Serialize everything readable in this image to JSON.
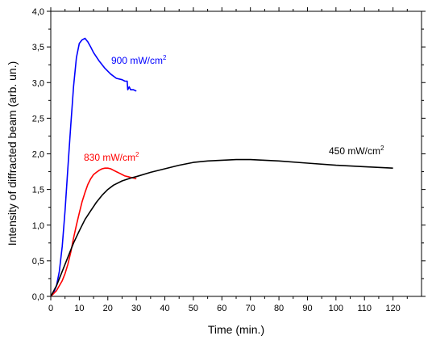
{
  "chart_data": {
    "type": "line",
    "title": "",
    "xlabel": "Time (min.)",
    "ylabel": "Intensity of diffracted beam (arb. un.)",
    "xlim": [
      0,
      130
    ],
    "ylim": [
      0,
      4.0
    ],
    "x_ticks": [
      "0",
      "10",
      "20",
      "30",
      "40",
      "50",
      "60",
      "70",
      "80",
      "90",
      "100",
      "110",
      "120"
    ],
    "y_ticks": [
      "0,0",
      "0,5",
      "1,0",
      "1,5",
      "2,0",
      "2,5",
      "3,0",
      "3,5",
      "4,0"
    ],
    "grid": false,
    "legend": "none",
    "series": [
      {
        "name": "900 mW/cm²",
        "label_base": "900 mW/cm",
        "label_sup": "2",
        "color": "#0000ff",
        "x": [
          0,
          1,
          2,
          3,
          4,
          5,
          6,
          7,
          8,
          9,
          10,
          11,
          12,
          13,
          14,
          15,
          17,
          19,
          21,
          23,
          25,
          26,
          26.8,
          27,
          27.5,
          28,
          29,
          30
        ],
        "y": [
          0.0,
          0.05,
          0.15,
          0.35,
          0.7,
          1.2,
          1.8,
          2.4,
          2.95,
          3.35,
          3.55,
          3.6,
          3.62,
          3.57,
          3.5,
          3.42,
          3.3,
          3.2,
          3.12,
          3.06,
          3.04,
          3.02,
          3.02,
          2.9,
          2.94,
          2.9,
          2.9,
          2.88
        ]
      },
      {
        "name": "830 mW/cm²",
        "label_base": "830 mW/cm",
        "label_sup": "2",
        "color": "#ff0000",
        "x": [
          0,
          2,
          4,
          5,
          6,
          7,
          8,
          9,
          10,
          11,
          12,
          13,
          14,
          15,
          16,
          17,
          18,
          19,
          20,
          21,
          22,
          23,
          24,
          25,
          26,
          27,
          28,
          29,
          30
        ],
        "y": [
          0.0,
          0.08,
          0.22,
          0.32,
          0.45,
          0.62,
          0.82,
          1.0,
          1.17,
          1.33,
          1.46,
          1.57,
          1.65,
          1.71,
          1.74,
          1.77,
          1.79,
          1.8,
          1.8,
          1.79,
          1.77,
          1.75,
          1.73,
          1.71,
          1.69,
          1.68,
          1.67,
          1.66,
          1.65
        ]
      },
      {
        "name": "450 mW/cm²",
        "label_base": "450 mW/cm",
        "label_sup": "2",
        "color": "#000000",
        "x": [
          0,
          2,
          4,
          6,
          8,
          10,
          12,
          14,
          16,
          18,
          20,
          22,
          25,
          28,
          30,
          35,
          40,
          45,
          50,
          55,
          60,
          65,
          70,
          75,
          80,
          90,
          100,
          110,
          120
        ],
        "y": [
          0.0,
          0.15,
          0.35,
          0.55,
          0.75,
          0.92,
          1.08,
          1.2,
          1.32,
          1.42,
          1.5,
          1.56,
          1.62,
          1.66,
          1.68,
          1.74,
          1.79,
          1.84,
          1.88,
          1.9,
          1.91,
          1.92,
          1.92,
          1.91,
          1.9,
          1.87,
          1.84,
          1.82,
          1.8
        ]
      }
    ]
  }
}
